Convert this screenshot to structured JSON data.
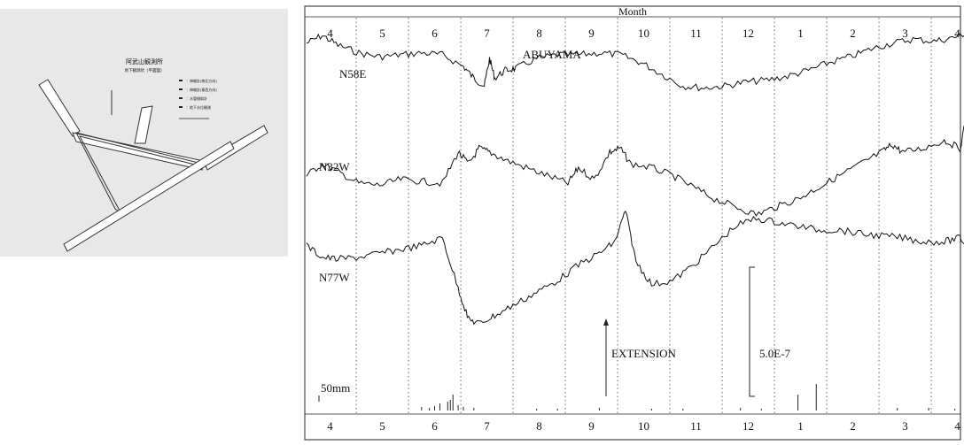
{
  "map": {
    "title": "阿武山観測所",
    "subtitle": "地下観測坑（平面図）",
    "legend": [
      "：伸縮計(南北方向)",
      "：伸縮計(東西方向)",
      "：水管傾斜計",
      "：地下水位観測"
    ]
  },
  "chart_data": {
    "type": "line",
    "title": "Month",
    "station_label": "ABUYAMA",
    "month_ticks": [
      "4",
      "5",
      "6",
      "7",
      "8",
      "9",
      "10",
      "11",
      "12",
      "1",
      "2",
      "3",
      "4"
    ],
    "series": [
      {
        "name": "N58E",
        "x": [
          0,
          0.3,
          0.6,
          1,
          1.4,
          1.8,
          2.2,
          2.6,
          3.0,
          3.2,
          3.4,
          3.5,
          3.6,
          3.8,
          4,
          4.4,
          4.8,
          5.2,
          5.6,
          6,
          6.4,
          6.8,
          7.2,
          7.6,
          8,
          8.4,
          8.8,
          9.2,
          9.6,
          10,
          10.4,
          10.8,
          11.2,
          11.6,
          12,
          12.4,
          12.7
        ],
        "y": [
          0.2,
          0.0,
          0.25,
          0.45,
          0.55,
          0.5,
          0.45,
          0.5,
          0.8,
          1.1,
          1.3,
          0.6,
          1.1,
          0.9,
          0.85,
          0.6,
          0.5,
          0.5,
          0.45,
          0.5,
          0.7,
          1.0,
          1.3,
          1.35,
          1.3,
          1.2,
          1.15,
          1.05,
          0.9,
          0.7,
          0.55,
          0.35,
          0.2,
          0.1,
          0.15,
          0.05,
          -0.1
        ]
      },
      {
        "name": "N32W",
        "x": [
          0,
          0.3,
          0.6,
          1,
          1.4,
          1.8,
          2.2,
          2.6,
          2.9,
          3.1,
          3.3,
          3.5,
          3.8,
          4.2,
          4.6,
          5,
          5.2,
          5.5,
          5.8,
          6,
          6.2,
          6.6,
          7,
          7.4,
          7.8,
          8.2,
          8.6,
          9,
          9.4,
          9.8,
          10.2,
          10.6,
          11,
          11.2,
          11.4,
          11.8,
          12.2,
          12.5,
          12.7
        ],
        "y": [
          3.6,
          3.3,
          3.5,
          3.8,
          3.85,
          3.7,
          3.75,
          3.8,
          3.0,
          3.3,
          2.9,
          3.0,
          3.2,
          3.4,
          3.6,
          3.8,
          3.4,
          3.7,
          3.0,
          2.9,
          3.3,
          3.4,
          3.6,
          3.9,
          4.2,
          4.4,
          4.6,
          4.4,
          4.2,
          3.9,
          3.6,
          3.3,
          3.0,
          2.8,
          3.0,
          2.9,
          2.7,
          2.9,
          1.6
        ]
      },
      {
        "name": "N77W",
        "x": [
          0,
          0.3,
          0.6,
          1,
          1.4,
          1.8,
          2.2,
          2.6,
          2.9,
          3.1,
          3.3,
          3.6,
          4,
          4.4,
          4.8,
          5.2,
          5.6,
          5.9,
          6.1,
          6.3,
          6.6,
          7,
          7.4,
          7.8,
          8.2,
          8.6,
          9,
          9.4,
          9.8,
          10.2,
          10.6,
          11,
          11.4,
          11.8,
          12.2,
          12.5,
          12.7
        ],
        "y": [
          5.4,
          5.7,
          5.75,
          5.7,
          5.6,
          5.5,
          5.4,
          5.2,
          6.5,
          7.3,
          7.4,
          7.2,
          6.9,
          6.6,
          6.3,
          5.9,
          5.6,
          5.3,
          4.5,
          5.8,
          6.4,
          6.3,
          5.9,
          5.4,
          4.9,
          4.7,
          4.8,
          4.9,
          5.0,
          5.0,
          5.1,
          5.15,
          5.2,
          5.3,
          5.3,
          5.2,
          5.5
        ]
      }
    ],
    "annotations": {
      "extension": "EXTENSION",
      "scale": "5.0E-7",
      "rain": "50mm"
    }
  }
}
